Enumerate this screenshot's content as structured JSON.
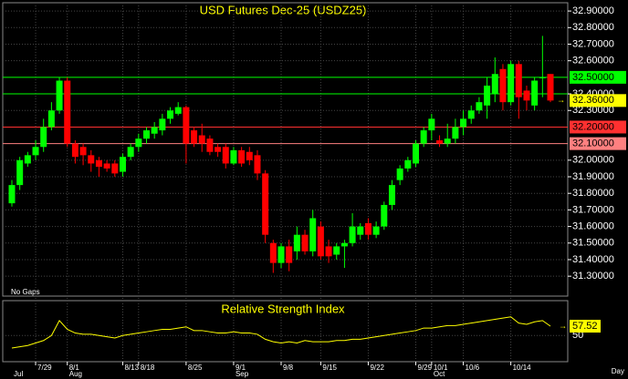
{
  "chart_data": [
    {
      "type": "candlestick",
      "title": "USD Futures Dec-25 (USDZ25)",
      "note": "No Gaps",
      "x_label": "Day",
      "categories": [
        null,
        null,
        null,
        "7/29",
        null,
        null,
        null,
        "8/1",
        null,
        null,
        null,
        null,
        null,
        null,
        "8/13",
        null,
        "8/18",
        null,
        null,
        null,
        null,
        null,
        "8/25",
        null,
        null,
        null,
        null,
        null,
        "9/1",
        null,
        null,
        null,
        null,
        null,
        "9/8",
        null,
        null,
        null,
        null,
        "9/15",
        null,
        null,
        null,
        null,
        null,
        "9/22",
        null,
        null,
        null,
        null,
        null,
        "9/29",
        null,
        "10/1",
        null,
        null,
        null,
        "10/6",
        null,
        null,
        null,
        null,
        null,
        "10/14",
        null,
        null,
        null,
        null,
        null
      ],
      "months": [
        "Jul",
        null,
        null,
        null,
        null,
        null,
        null,
        "Aug",
        null,
        null,
        null,
        null,
        null,
        null,
        null,
        null,
        null,
        null,
        null,
        null,
        null,
        null,
        null,
        null,
        null,
        null,
        null,
        null,
        "Sep",
        null,
        null,
        null,
        null,
        null,
        null,
        null,
        null,
        null,
        null,
        null,
        null,
        null,
        null,
        null,
        null,
        null,
        null,
        null,
        null,
        null,
        null,
        null,
        null,
        "Oct",
        null,
        null,
        null,
        null,
        null,
        null,
        null,
        null,
        null,
        null,
        null,
        null,
        null,
        null,
        null
      ],
      "open": [
        31.74,
        31.85,
        31.98,
        32.03,
        32.08,
        32.2,
        32.3,
        32.48,
        32.1,
        32.08,
        32.03,
        32.0,
        31.98,
        31.98,
        31.93,
        32.02,
        32.08,
        32.13,
        32.16,
        32.18,
        32.25,
        32.28,
        32.32,
        32.18,
        32.15,
        32.13,
        32.08,
        32.08,
        31.98,
        32.06,
        32.05,
        32.03,
        31.92,
        31.5,
        31.38,
        31.48,
        31.45,
        31.55,
        31.45,
        31.6,
        31.48,
        31.43,
        31.48,
        31.5,
        31.55,
        31.62,
        31.55,
        31.6,
        31.73,
        31.88,
        31.95,
        31.98,
        32.1,
        32.18,
        32.12,
        32.1,
        32.13,
        32.2,
        32.25,
        32.3,
        32.33,
        32.4,
        32.55,
        32.35,
        32.58,
        32.42,
        32.33,
        32.5,
        32.52
      ],
      "high": [
        31.88,
        32.02,
        32.05,
        32.12,
        32.25,
        32.35,
        32.5,
        32.5,
        32.12,
        32.1,
        32.06,
        32.02,
        32.0,
        32.0,
        32.04,
        32.1,
        32.16,
        32.2,
        32.23,
        32.28,
        32.32,
        32.35,
        32.33,
        32.2,
        32.22,
        32.15,
        32.1,
        32.1,
        32.08,
        32.08,
        32.08,
        32.06,
        31.94,
        31.52,
        31.5,
        31.52,
        31.6,
        31.58,
        31.7,
        31.63,
        31.52,
        31.5,
        31.52,
        31.68,
        31.62,
        31.65,
        31.63,
        31.75,
        31.88,
        31.97,
        32.02,
        32.12,
        32.2,
        32.28,
        32.15,
        32.22,
        32.25,
        32.3,
        32.33,
        32.38,
        32.5,
        32.62,
        32.58,
        32.6,
        32.6,
        32.45,
        32.5,
        32.75,
        32.52
      ],
      "low": [
        31.72,
        31.82,
        31.96,
        32.0,
        32.05,
        32.18,
        32.28,
        32.08,
        31.98,
        31.97,
        31.93,
        31.9,
        31.93,
        31.9,
        31.9,
        32.0,
        32.05,
        32.1,
        32.13,
        32.15,
        32.22,
        32.27,
        31.98,
        32.08,
        32.05,
        32.03,
        32.02,
        31.95,
        31.97,
        31.96,
        31.97,
        31.88,
        31.5,
        31.32,
        31.35,
        31.33,
        31.4,
        31.43,
        31.42,
        31.4,
        31.38,
        31.4,
        31.35,
        31.48,
        31.52,
        31.52,
        31.53,
        31.58,
        31.7,
        31.85,
        31.93,
        31.96,
        32.08,
        32.12,
        32.08,
        32.08,
        32.1,
        32.15,
        32.22,
        32.28,
        32.25,
        32.35,
        32.3,
        32.33,
        32.25,
        32.3,
        32.3,
        32.38,
        32.35
      ],
      "close": [
        31.85,
        32.0,
        32.03,
        32.08,
        32.2,
        32.3,
        32.48,
        32.1,
        32.02,
        32.03,
        31.98,
        31.96,
        31.95,
        31.92,
        32.02,
        32.08,
        32.13,
        32.18,
        32.2,
        32.25,
        32.3,
        32.32,
        32.1,
        32.1,
        32.1,
        32.05,
        32.05,
        31.98,
        32.06,
        31.98,
        32.0,
        31.92,
        31.55,
        31.38,
        31.48,
        31.38,
        31.55,
        31.45,
        31.65,
        31.42,
        31.42,
        31.48,
        31.5,
        31.6,
        31.6,
        31.55,
        31.6,
        31.73,
        31.85,
        31.95,
        32.0,
        32.1,
        32.18,
        32.25,
        32.1,
        32.13,
        32.2,
        32.25,
        32.3,
        32.35,
        32.45,
        32.52,
        32.35,
        32.58,
        32.38,
        32.36,
        32.48,
        32.5,
        32.36
      ],
      "last_value_label": "32.36000",
      "up_color": "#00ff00",
      "down_color": "#ff0000",
      "ylim": [
        31.18,
        32.95
      ],
      "yticks": [
        {
          "value": 32.9,
          "label": "32.90000"
        },
        {
          "value": 32.8,
          "label": "32.80000"
        },
        {
          "value": 32.7,
          "label": "32.70000"
        },
        {
          "value": 32.6,
          "label": "32.60000"
        },
        {
          "value": 32.4,
          "label": "32.40000"
        },
        {
          "value": 32.3,
          "label": "32.30000"
        },
        {
          "value": 32.0,
          "label": "32.00000"
        },
        {
          "value": 31.9,
          "label": "31.90000"
        },
        {
          "value": 31.8,
          "label": "31.80000"
        },
        {
          "value": 31.7,
          "label": "31.70000"
        },
        {
          "value": 31.6,
          "label": "31.60000"
        },
        {
          "value": 31.5,
          "label": "31.50000"
        },
        {
          "value": 31.4,
          "label": "31.40000"
        },
        {
          "value": 31.3,
          "label": "31.30000"
        }
      ],
      "levels": [
        {
          "value": 32.5,
          "label": "32.50000",
          "color": "#00ff00"
        },
        {
          "value": 32.4,
          "color": "#00ff00"
        },
        {
          "value": 32.2,
          "label": "32.20000",
          "color": "#ff3030"
        },
        {
          "value": 32.1,
          "label": "32.10000",
          "color": "#ff8080"
        }
      ],
      "grid": true
    },
    {
      "type": "line",
      "title": "Relative Strength Index",
      "color": "#ffff00",
      "values": [
        40,
        41,
        42,
        44,
        46,
        50,
        62,
        55,
        52,
        51,
        51,
        50,
        49,
        48,
        50,
        51,
        52,
        53,
        54,
        55,
        55,
        56,
        57,
        54,
        54,
        53,
        52,
        52,
        53,
        52,
        52,
        51,
        47,
        45,
        44,
        45,
        44,
        46,
        45,
        45,
        45,
        46,
        46,
        47,
        47,
        48,
        49,
        50,
        51,
        52,
        53,
        54,
        56,
        56,
        57,
        58,
        58,
        59,
        60,
        61,
        62,
        63,
        64,
        65,
        60,
        59,
        61,
        62,
        57.52
      ],
      "last_value_label": "57.52",
      "ylim": [
        29,
        78
      ],
      "yticks": [
        50
      ],
      "grid": true
    }
  ]
}
